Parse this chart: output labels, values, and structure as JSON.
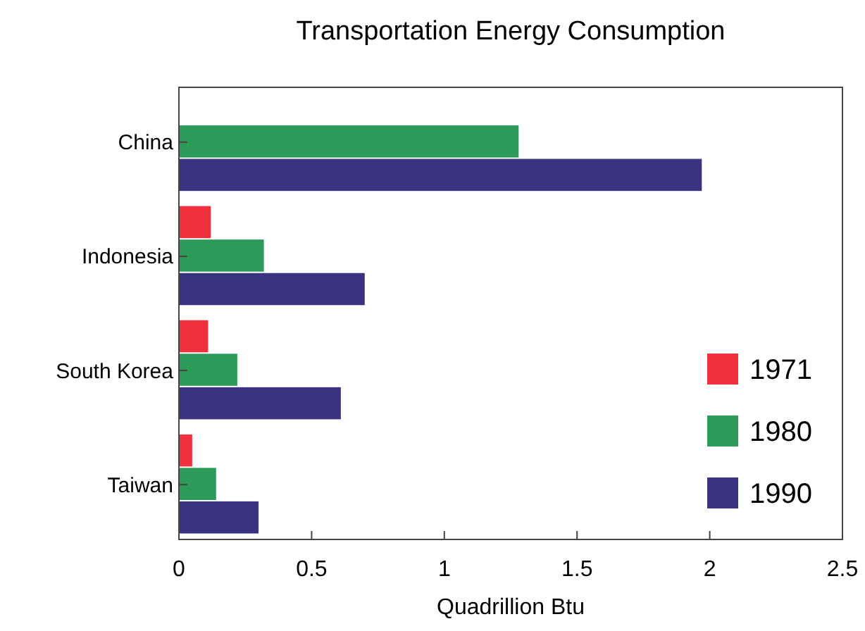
{
  "chart_data": {
    "type": "bar",
    "orientation": "horizontal",
    "title": "Transportation Energy Consumption",
    "xlabel": "Quadrillion Btu",
    "categories": [
      "China",
      "Indonesia",
      "South Korea",
      "Taiwan"
    ],
    "series": [
      {
        "name": "1971",
        "color": "#f0303c",
        "values": [
          null,
          0.12,
          0.11,
          0.05
        ]
      },
      {
        "name": "1980",
        "color": "#2e9a5a",
        "values": [
          1.28,
          0.32,
          0.22,
          0.14
        ]
      },
      {
        "name": "1990",
        "color": "#3a3480",
        "values": [
          1.97,
          0.7,
          0.61,
          0.3
        ]
      }
    ],
    "xlim": [
      0,
      2.5
    ],
    "xticks": [
      0,
      0.5,
      1,
      1.5,
      2,
      2.5
    ],
    "legend": "bottom right",
    "grid": false
  }
}
